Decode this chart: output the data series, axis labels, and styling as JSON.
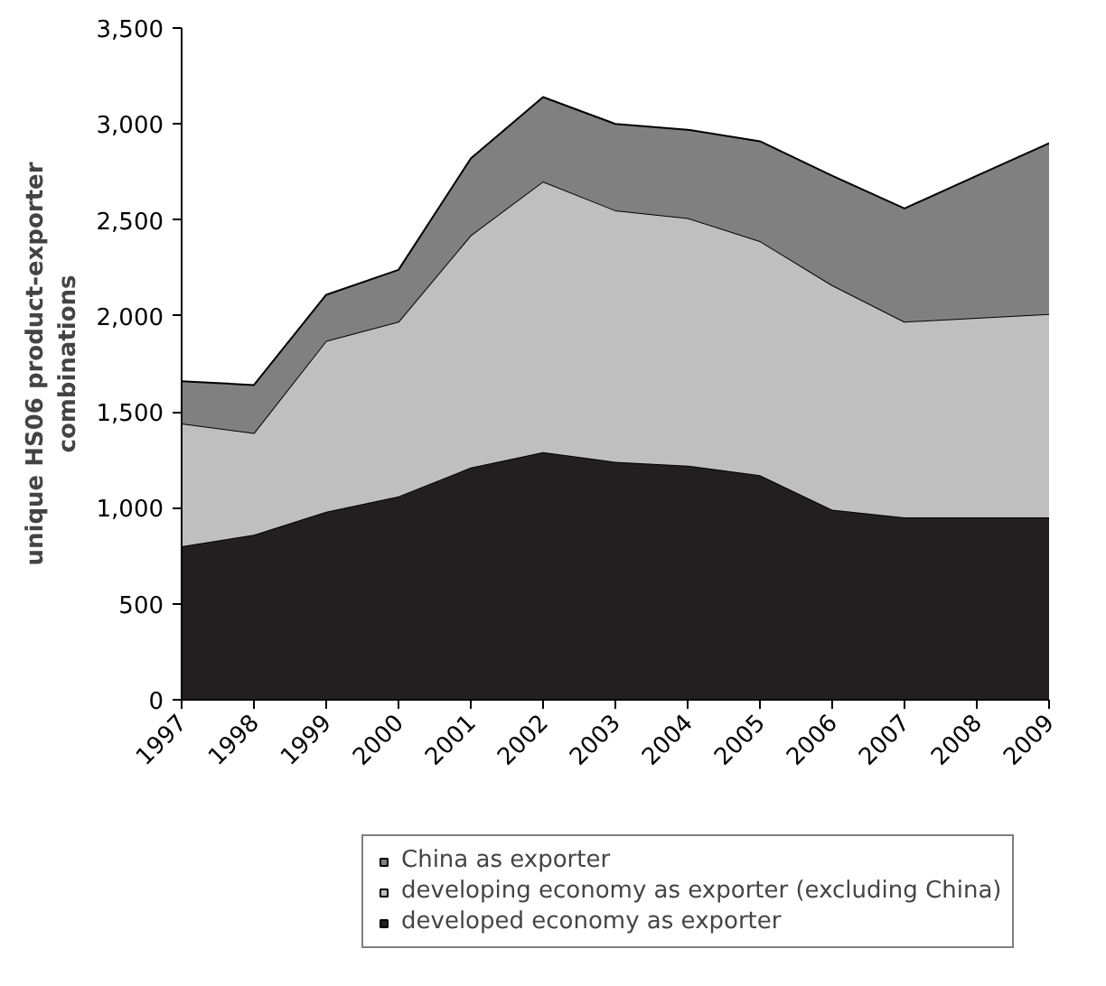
{
  "chart_data": {
    "type": "area",
    "stacked": true,
    "ylabel": "unique HS06 product-exporter\ncombinations",
    "categories": [
      "1997",
      "1998",
      "1999",
      "2000",
      "2001",
      "2002",
      "2003",
      "2004",
      "2005",
      "2006",
      "2007",
      "2008",
      "2009"
    ],
    "series": [
      {
        "name": "developed economy as exporter",
        "color": "#231f20",
        "values": [
          800,
          860,
          980,
          1060,
          1210,
          1290,
          1240,
          1220,
          1170,
          990,
          950,
          950,
          950
        ]
      },
      {
        "name": "developing economy as exporter (excluding China)",
        "color": "#bfbfbf",
        "values": [
          640,
          530,
          890,
          910,
          1210,
          1410,
          1310,
          1290,
          1220,
          1170,
          1020,
          1040,
          1060
        ]
      },
      {
        "name": "China as exporter",
        "color": "#808080",
        "values": [
          220,
          250,
          240,
          270,
          400,
          440,
          450,
          460,
          520,
          570,
          590,
          740,
          890
        ]
      }
    ],
    "ylim": [
      0,
      3500
    ],
    "yticks": [
      {
        "value": 0,
        "label": "0"
      },
      {
        "value": 500,
        "label": "500"
      },
      {
        "value": 1000,
        "label": "1,000"
      },
      {
        "value": 1500,
        "label": "1,500"
      },
      {
        "value": 2000,
        "label": "2,000"
      },
      {
        "value": 2500,
        "label": "2,500"
      },
      {
        "value": 3000,
        "label": "3,000"
      },
      {
        "value": 3500,
        "label": "3,500"
      }
    ],
    "legend": "bottom",
    "grid": false
  }
}
